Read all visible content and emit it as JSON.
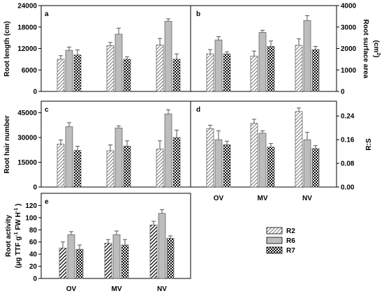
{
  "chart_data": [
    {
      "type": "bar",
      "panel": "a",
      "ylabel": "Root length (cm)",
      "ylim": [
        0,
        24000
      ],
      "yticks": [
        "0",
        "6000",
        "12000",
        "18000",
        "24000"
      ],
      "categories": [
        "OV",
        "MV",
        "NV"
      ],
      "series": [
        {
          "name": "R2",
          "values": [
            9000,
            12800,
            13000
          ],
          "errors": [
            1000,
            900,
            1800
          ]
        },
        {
          "name": "R6",
          "values": [
            11500,
            16000,
            19600
          ],
          "errors": [
            900,
            1700,
            700
          ]
        },
        {
          "name": "R7",
          "values": [
            10200,
            9000,
            9000
          ],
          "errors": [
            1400,
            700,
            1500
          ]
        }
      ]
    },
    {
      "type": "bar",
      "panel": "b",
      "ylabel": "Root surface area (cm2)",
      "ylim": [
        0,
        4000
      ],
      "yticks": [
        "0",
        "1000",
        "2000",
        "3000",
        "4000"
      ],
      "categories": [
        "OV",
        "MV",
        "NV"
      ],
      "series": [
        {
          "name": "R2",
          "values": [
            1750,
            1650,
            2150
          ],
          "errors": [
            200,
            230,
            300
          ]
        },
        {
          "name": "R6",
          "values": [
            2400,
            2750,
            3300
          ],
          "errors": [
            150,
            100,
            230
          ]
        },
        {
          "name": "R7",
          "values": [
            1750,
            2100,
            1950
          ],
          "errors": [
            100,
            250,
            150
          ]
        }
      ]
    },
    {
      "type": "bar",
      "panel": "c",
      "ylabel": "Root hair number",
      "ylim": [
        0,
        52000
      ],
      "yticks": [
        "0",
        "15000",
        "30000",
        "45000"
      ],
      "categories": [
        "OV",
        "MV",
        "NV"
      ],
      "series": [
        {
          "name": "R2",
          "values": [
            26000,
            22000,
            23000
          ],
          "errors": [
            2500,
            3500,
            5000
          ]
        },
        {
          "name": "R6",
          "values": [
            36500,
            35800,
            44300
          ],
          "errors": [
            2500,
            1300,
            2500
          ]
        },
        {
          "name": "R7",
          "values": [
            22200,
            24800,
            30000
          ],
          "errors": [
            2500,
            3200,
            4500
          ]
        }
      ]
    },
    {
      "type": "bar",
      "panel": "d",
      "ylabel": "R:S",
      "ylim": [
        0,
        0.29
      ],
      "yticks": [
        "0.00",
        "0.08",
        "0.16",
        "0.24"
      ],
      "categories": [
        "OV",
        "MV",
        "NV"
      ],
      "series": [
        {
          "name": "R2",
          "values": [
            0.197,
            0.215,
            0.255
          ],
          "errors": [
            0.012,
            0.014,
            0.012
          ]
        },
        {
          "name": "R6",
          "values": [
            0.16,
            0.182,
            0.16
          ],
          "errors": [
            0.03,
            0.008,
            0.025
          ]
        },
        {
          "name": "R7",
          "values": [
            0.143,
            0.135,
            0.13
          ],
          "errors": [
            0.012,
            0.012,
            0.01
          ]
        }
      ]
    },
    {
      "type": "bar",
      "panel": "e",
      "ylabel": "Root activity (μg TTF g-1 FW H-1)",
      "ylim": [
        0,
        140
      ],
      "yticks": [
        "0",
        "20",
        "40",
        "60",
        "80",
        "100",
        "120"
      ],
      "categories": [
        "OV",
        "MV",
        "NV"
      ],
      "series": [
        {
          "name": "R2",
          "values": [
            50,
            58,
            88
          ],
          "errors": [
            10,
            6,
            6
          ]
        },
        {
          "name": "R6",
          "values": [
            72,
            72,
            107
          ],
          "errors": [
            5,
            6,
            6
          ]
        },
        {
          "name": "R7",
          "values": [
            48,
            55,
            66
          ],
          "errors": [
            7,
            9,
            4
          ]
        }
      ]
    }
  ],
  "legend": [
    "R2",
    "R6",
    "R7"
  ],
  "panel_letters": [
    "a",
    "b",
    "c",
    "d",
    "e"
  ]
}
